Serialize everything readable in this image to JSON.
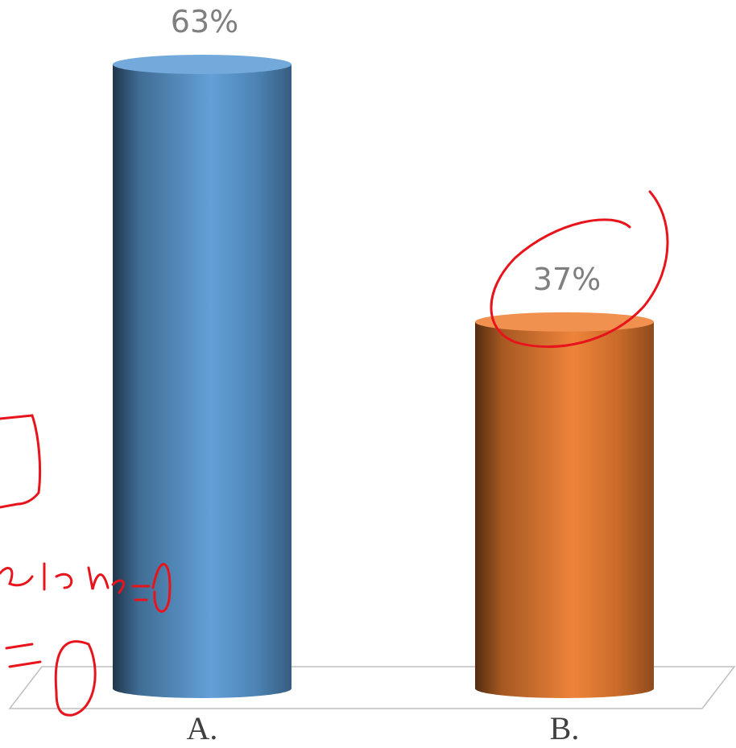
{
  "chart_data": {
    "type": "bar",
    "categories": [
      "A.",
      "B."
    ],
    "values": [
      63,
      37
    ],
    "value_labels": [
      "63%",
      "37%"
    ],
    "colors": [
      "#5b9bd5",
      "#ed7d31"
    ]
  }
}
